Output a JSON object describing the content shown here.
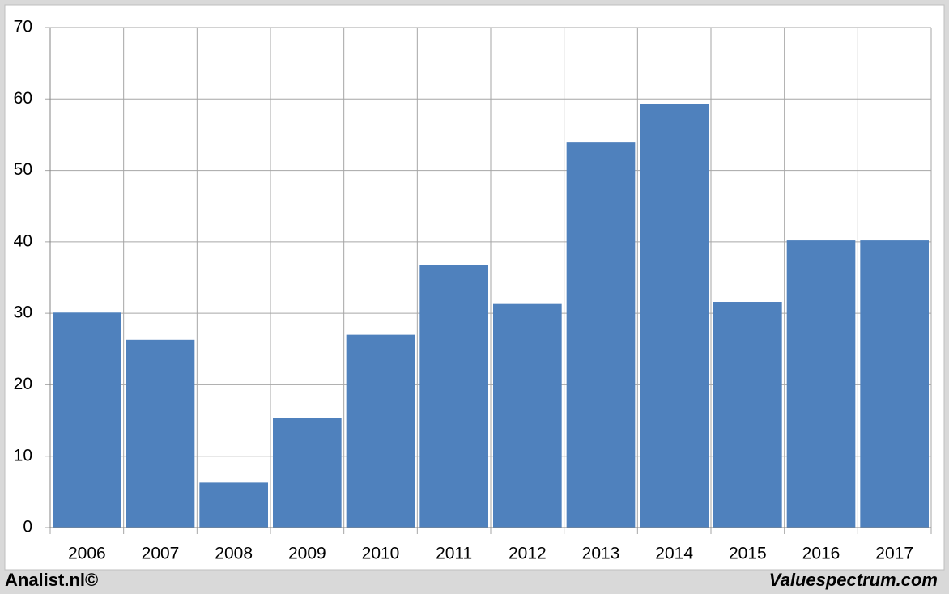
{
  "chart_data": {
    "type": "bar",
    "categories": [
      "2006",
      "2007",
      "2008",
      "2009",
      "2010",
      "2011",
      "2012",
      "2013",
      "2014",
      "2015",
      "2016",
      "2017"
    ],
    "values": [
      30.1,
      26.3,
      6.3,
      15.3,
      27.0,
      36.7,
      31.3,
      53.9,
      59.3,
      31.6,
      40.2,
      40.2
    ],
    "color": "#4f81bd",
    "ylim": [
      0,
      70
    ],
    "yticks": [
      0,
      10,
      20,
      30,
      40,
      50,
      60,
      70
    ],
    "grid": true
  },
  "footer": {
    "left": "Analist.nl©",
    "right": "Valuespectrum.com"
  }
}
